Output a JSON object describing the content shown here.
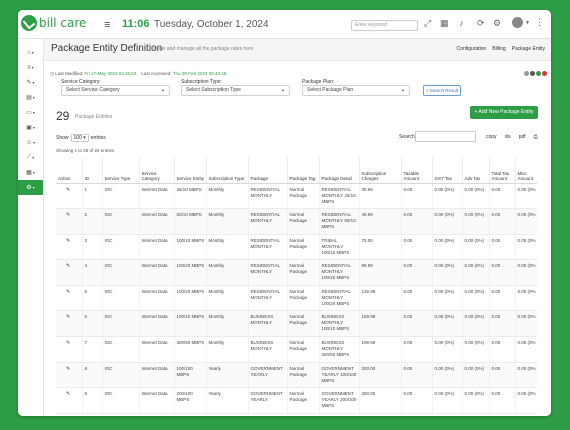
{
  "brand": {
    "logo_text": "bill care",
    "accent": "#2e9e46"
  },
  "topbar": {
    "time": "11:06",
    "date": "Tuesday, October 1, 2024",
    "search_placeholder": "Enter keyword",
    "icons": [
      "menu-icon",
      "bell-icon",
      "refresh-icon",
      "settings-icon",
      "user-icon",
      "more-icon"
    ]
  },
  "sidebar": {
    "items": [
      {
        "icon": "home-icon",
        "glyph": "⌂"
      },
      {
        "icon": "list-icon",
        "glyph": "≡"
      },
      {
        "icon": "tools-icon",
        "glyph": "✎"
      },
      {
        "icon": "document-icon",
        "glyph": "▤"
      },
      {
        "icon": "monitor-icon",
        "glyph": "▭"
      },
      {
        "icon": "folder-icon",
        "glyph": "▣"
      },
      {
        "icon": "users-icon",
        "glyph": "☺"
      },
      {
        "icon": "chart-icon",
        "glyph": "⟋"
      },
      {
        "icon": "box-icon",
        "glyph": "▦"
      },
      {
        "icon": "gear-icon",
        "glyph": "⚙"
      }
    ]
  },
  "header": {
    "title": "Package Entity Definition",
    "subtitle": "Define and manage all the package rates here",
    "breadcrumbs": [
      "Configuration",
      "Billing",
      "Package Entity"
    ]
  },
  "meta": {
    "last_modified_label": "Last Modified:",
    "last_modified": "Fri 17-May-2024 03:25:53",
    "last_accessed_label": "Last Accessed:",
    "last_accessed": "Thu 29-Feb-2024 00:43:46"
  },
  "filters": {
    "service_category_label": "Service Category:",
    "service_category": "Select Service Category",
    "subscription_type_label": "Subscription Type:",
    "subscription_type": "Select Subscription Type",
    "package_plan_label": "Package Plan:",
    "package_plan": "Select Package Plan",
    "search_result": "Search Result"
  },
  "summary": {
    "count": "29",
    "label": "Package Entities",
    "add_button": "+ Add New Package Entity"
  },
  "controls": {
    "show": "Show",
    "page_size": "100",
    "entries": "entries",
    "search_label": "Search:",
    "export": [
      "copy",
      "xls",
      "pdf",
      "⎙"
    ],
    "showing": "Showing 1 to 29 of 29 entries"
  },
  "table": {
    "columns": [
      "Action",
      "ID",
      "Service Type",
      "Service Category",
      "Service Entity",
      "Subscription Type",
      "Package",
      "Package Tag",
      "Package Detail",
      "Subscription Charges",
      "Taxable Amount",
      "GST Tax",
      "Adv Tax",
      "Total Tax Amount",
      "Misc Amount"
    ],
    "rows": [
      [
        "",
        "1",
        "IOC",
        "Internet Data",
        "25/10 MBPS",
        "Monthly",
        "RESIDENTIAL MONTHLY",
        "Normal Package",
        "RESIDENTIAL MONTHLY 25/10 MBPS",
        "39.99",
        "0.00",
        "0.00 (0%)",
        "0.00 (0%)",
        "0.00",
        "0.00 (0%"
      ],
      [
        "",
        "2",
        "IOC",
        "Internet Data",
        "50/10 MBPS",
        "Monthly",
        "RESIDENTIAL MONTHLY",
        "Normal Package",
        "RESIDENTIAL MONTHLY 50/10 MBPS",
        "49.99",
        "0.00",
        "0.00 (0%)",
        "0.00 (0%)",
        "0.00",
        "0.00 (0%"
      ],
      [
        "",
        "3",
        "IOC",
        "Internet Data",
        "100/10 MBPS",
        "Monthly",
        "RESIDENTIAL MONTHLY",
        "Normal Package",
        "TRIBAL MONTHLY 100/10 MBPS",
        "75.00",
        "0.00",
        "0.00 (0%)",
        "0.00 (0%)",
        "0.00",
        "0.00 (0%"
      ],
      [
        "",
        "4",
        "IOC",
        "Internet Data",
        "100/20 MBPS",
        "Monthly",
        "RESIDENTIAL MONTHLY",
        "Normal Package",
        "RESIDENTIAL MONTHLY 100/20 MBPS",
        "99.99",
        "0.00",
        "0.00 (0%)",
        "0.00 (0%)",
        "0.00",
        "0.00 (0%"
      ],
      [
        "",
        "5",
        "IOC",
        "Internet Data",
        "100/20 MBPS",
        "Monthly",
        "RESIDENTIAL MONTHLY",
        "Normal Package",
        "RESIDENTIAL MONTHLY 100/20 MBPS",
        "129.99",
        "0.00",
        "0.00 (0%)",
        "0.00 (0%)",
        "0.00",
        "0.00 (0%"
      ],
      [
        "",
        "6",
        "IOC",
        "Internet Data",
        "100/10 MBPS",
        "Monthly",
        "BUSINESS MONTHLY",
        "Normal Package",
        "BUSINESS MONTHLY 100/10 MBPS",
        "159.99",
        "0.00",
        "0.00 (0%)",
        "0.00 (0%)",
        "0.00",
        "0.00 (0%"
      ],
      [
        "",
        "7",
        "IOC",
        "Internet Data",
        "300/50 MBPS",
        "Monthly",
        "BUSINESS MONTHLY",
        "Normal Package",
        "BUSINESS MONTHLY 300/50 MBPS",
        "199.99",
        "0.00",
        "0.00 (0%)",
        "0.00 (0%)",
        "0.00",
        "0.00 (0%"
      ],
      [
        "",
        "8",
        "IOC",
        "Internet Data",
        "100/100 MBPS",
        "Yearly",
        "GOVERNMENT YEARLY",
        "Normal Package",
        "GOVERNMENT YEARLY 100/100 MBPS",
        "200.00",
        "0.00",
        "0.00 (0%)",
        "0.00 (0%)",
        "0.00",
        "0.00 (0%"
      ],
      [
        "",
        "9",
        "IOC",
        "Internet Data",
        "200/100 MBPS",
        "Yearly",
        "GOVERNMENT YEARLY",
        "Normal Package",
        "GOVERNMENT YEARLY 200/100 MBPS",
        "250.00",
        "0.00",
        "0.00 (0%)",
        "0.00 (0%)",
        "0.00",
        "0.00 (0%"
      ]
    ]
  }
}
